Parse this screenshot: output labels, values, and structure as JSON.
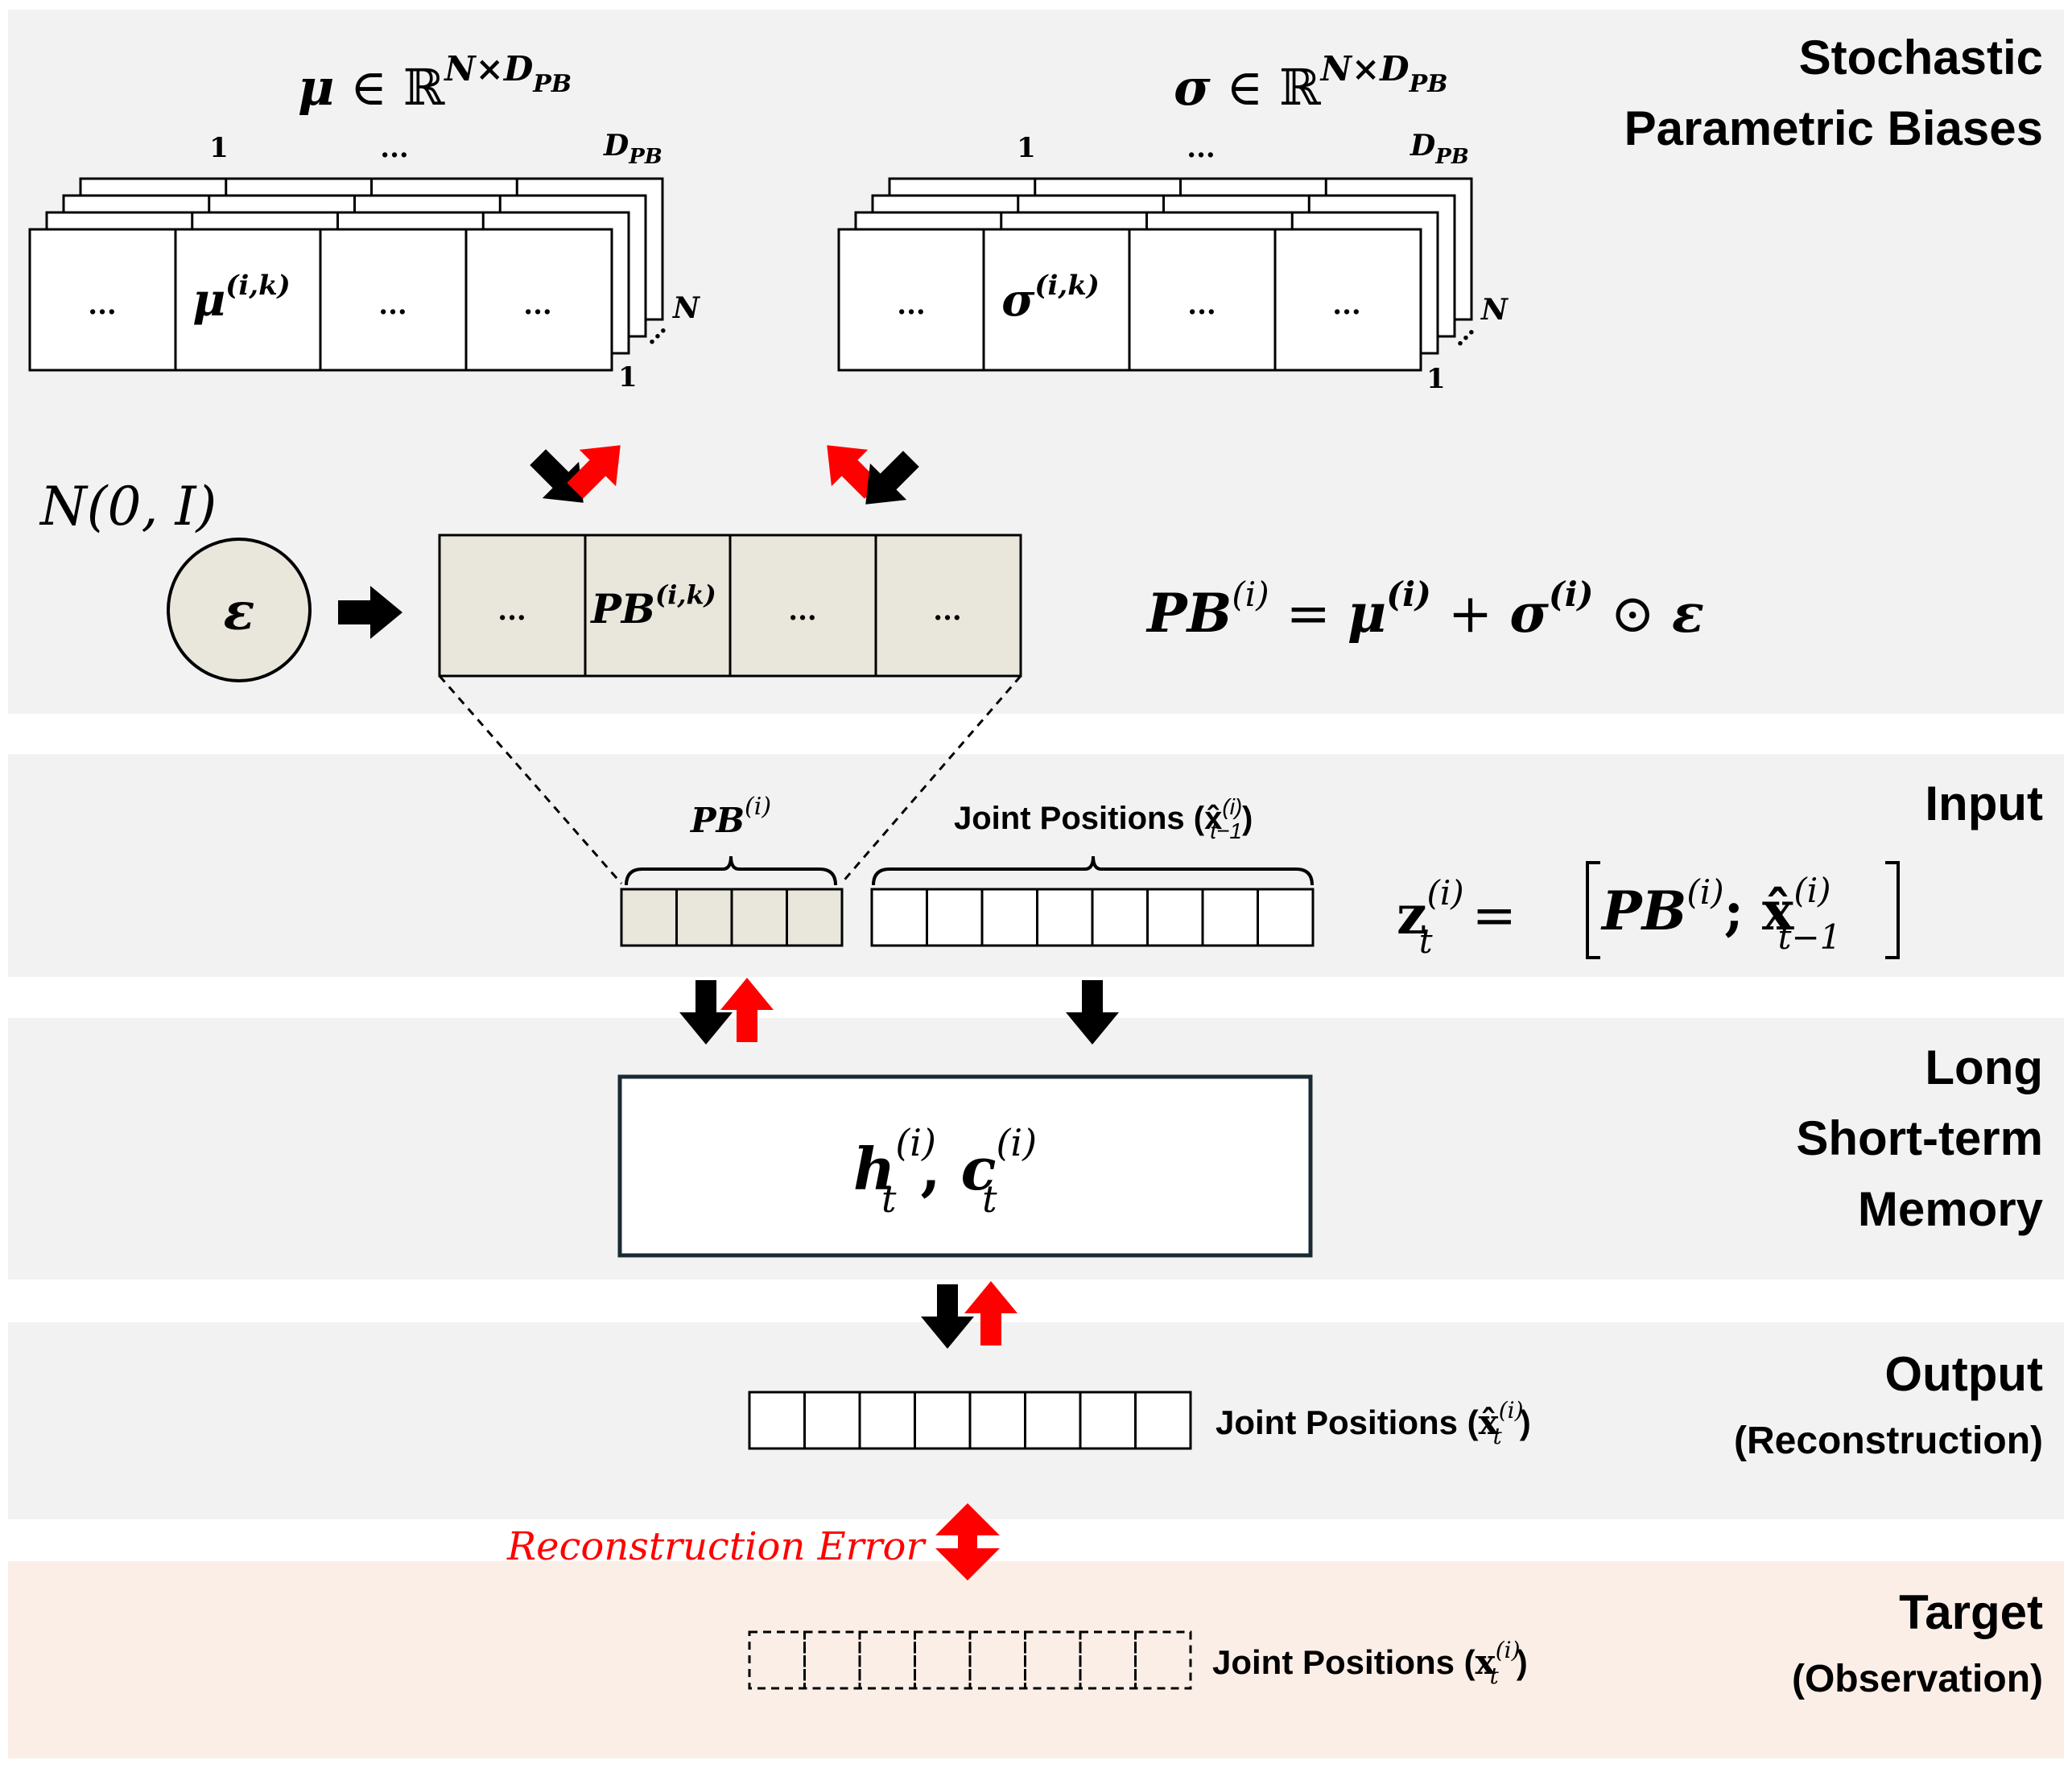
{
  "sections": {
    "stochastic": {
      "title_line1": "Stochastic",
      "title_line2": "Parametric Biases"
    },
    "input": {
      "title": "Input"
    },
    "lstm": {
      "title_line1": "Long",
      "title_line2": "Short-term",
      "title_line3": "Memory"
    },
    "output": {
      "title": "Output",
      "subtitle": "(Reconstruction)"
    },
    "target": {
      "title": "Target",
      "subtitle": "(Observation)"
    }
  },
  "mu_tensor": {
    "header_base": "μ",
    "header_in": " ∈ ℝ",
    "header_sup": "N×D",
    "header_sub": "PB",
    "col_first": "1",
    "col_mid": "...",
    "col_last_base": "D",
    "col_last_sub": "PB",
    "depth_last": "N",
    "depth_first": "1",
    "cells": [
      "...",
      "μ",
      "...",
      "..."
    ],
    "cell_sup": "(i,k)"
  },
  "sigma_tensor": {
    "header_base": "σ",
    "header_in": " ∈ ℝ",
    "header_sup": "N×D",
    "header_sub": "PB",
    "col_first": "1",
    "col_mid": "...",
    "col_last_base": "D",
    "col_last_sub": "PB",
    "depth_last": "N",
    "depth_first": "1",
    "cells": [
      "...",
      "σ",
      "...",
      "..."
    ],
    "cell_sup": "(i,k)"
  },
  "noise": {
    "dist_label": "N(0, I)",
    "symbol": "ε"
  },
  "pb_vector": {
    "cells": [
      "...",
      "PB",
      "...",
      "..."
    ],
    "cell_sup": "(i,k)"
  },
  "pb_equation": {
    "lhs": "PB",
    "lhs_sup": "(i)",
    "eq": " = ",
    "mu": "μ",
    "mu_sup": "(i)",
    "plus": " + ",
    "sigma": "σ",
    "sigma_sup": "(i)",
    "odot": " ⊙ ",
    "eps": "ε"
  },
  "input_row": {
    "pb_brace_label": "PB",
    "pb_brace_sup": "(i)",
    "joint_label": "Joint Positions (",
    "joint_sym": "x̂",
    "joint_sup": "(i)",
    "joint_sub": "t−1",
    "joint_close": ")",
    "pb_cell_count": 4,
    "joint_cell_count": 8
  },
  "z_equation": {
    "lhs": "z",
    "lhs_sup": "(i)",
    "lhs_sub": "t",
    "eq": " = ",
    "pb": "PB",
    "pb_sup": "(i)",
    "sep": "; ",
    "x": "x̂",
    "x_sup": "(i)",
    "x_sub": "t−1"
  },
  "lstm_box": {
    "h": "h",
    "c": "c",
    "sup": "(i)",
    "sub": "t",
    "comma": ", "
  },
  "output_row": {
    "label": "Joint Positions (",
    "sym": "x̂",
    "sup": "(i)",
    "sub": "t",
    "close": ")",
    "cell_count": 8
  },
  "error": {
    "label": "Reconstruction Error",
    "color": "#ff0000"
  },
  "target_row": {
    "label": "Joint Positions (",
    "sym": "x",
    "sup": "(i)",
    "sub": "t",
    "close": ")",
    "cell_count": 8
  },
  "colors": {
    "band": "#f2f2f2",
    "target_band": "#fbeee7",
    "pb_fill": "#e9e7dc",
    "arrow_black": "#000000",
    "arrow_red": "#ff0000"
  }
}
